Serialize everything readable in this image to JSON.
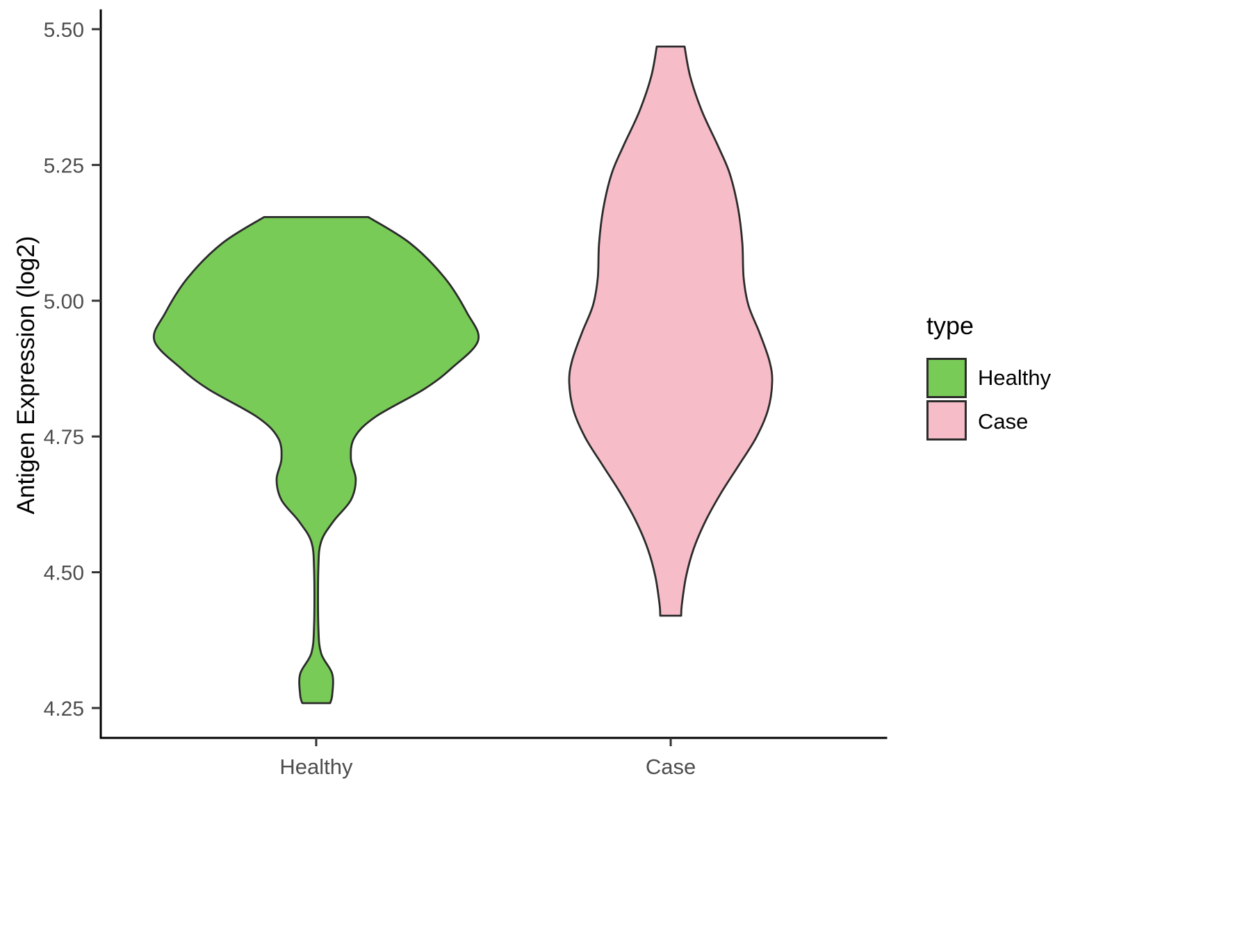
{
  "figure": {
    "background": "#FFFFFF"
  },
  "chart_data": {
    "type": "violin",
    "title": "",
    "xlabel": "",
    "ylabel": "Antigen Expression (log2)",
    "categories": [
      "Healthy",
      "Case"
    ],
    "y_ticks": [
      5.5,
      5.25,
      5.0,
      4.75,
      4.5,
      4.25
    ],
    "y_tick_labels": [
      "5.50",
      "5.25",
      "5.00",
      "4.75",
      "4.50",
      "4.25"
    ],
    "ylim": [
      4.195,
      5.535
    ],
    "grid": "off",
    "legend": {
      "title": "type",
      "position": "right",
      "entries": [
        {
          "label": "Healthy",
          "color": "#79CB57"
        },
        {
          "label": "Case",
          "color": "#F6BDC9"
        }
      ]
    },
    "series": [
      {
        "name": "Healthy",
        "color": "#79CB57",
        "outline": "#2B2B2B",
        "center": 0.2743,
        "y_min": 4.259,
        "y_max": 5.154,
        "profile": [
          [
            5.154,
            0.0664
          ],
          [
            5.106,
            0.1195
          ],
          [
            5.042,
            0.1637
          ],
          [
            4.978,
            0.192
          ],
          [
            4.927,
            0.2062
          ],
          [
            4.876,
            0.1726
          ],
          [
            4.837,
            0.1372
          ],
          [
            4.786,
            0.0752
          ],
          [
            4.748,
            0.0487
          ],
          [
            4.709,
            0.0442
          ],
          [
            4.671,
            0.0504
          ],
          [
            4.633,
            0.0442
          ],
          [
            4.594,
            0.0221
          ],
          [
            4.556,
            0.0062
          ],
          [
            4.505,
            0.0027
          ],
          [
            4.402,
            0.0027
          ],
          [
            4.351,
            0.0062
          ],
          [
            4.313,
            0.0204
          ],
          [
            4.274,
            0.0204
          ],
          [
            4.259,
            0.0177
          ]
        ]
      },
      {
        "name": "Case",
        "color": "#F6BDC9",
        "outline": "#2B2B2B",
        "center": 0.7257,
        "y_min": 4.42,
        "y_max": 5.468,
        "profile": [
          [
            5.468,
            0.0177
          ],
          [
            5.413,
            0.0248
          ],
          [
            5.349,
            0.0398
          ],
          [
            5.285,
            0.0602
          ],
          [
            5.234,
            0.0752
          ],
          [
            5.17,
            0.0858
          ],
          [
            5.106,
            0.0912
          ],
          [
            5.042,
            0.0929
          ],
          [
            4.991,
            0.0991
          ],
          [
            4.94,
            0.1133
          ],
          [
            4.889,
            0.1257
          ],
          [
            4.85,
            0.1292
          ],
          [
            4.799,
            0.1239
          ],
          [
            4.748,
            0.1088
          ],
          [
            4.697,
            0.0867
          ],
          [
            4.645,
            0.0637
          ],
          [
            4.594,
            0.0442
          ],
          [
            4.543,
            0.0292
          ],
          [
            4.492,
            0.0195
          ],
          [
            4.441,
            0.0142
          ],
          [
            4.42,
            0.0133
          ]
        ]
      }
    ]
  }
}
